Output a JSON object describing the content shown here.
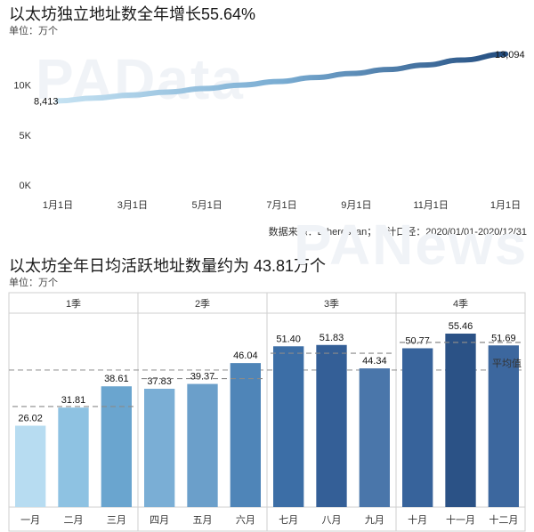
{
  "chart_data": [
    {
      "type": "line",
      "title": "以太坊独立地址数全年增长55.64%",
      "unit_label": "单位：万个",
      "source": "数据来源：Etherescan；统计口径：2020/01/01-2020/12/31",
      "watermark": "PAData",
      "x_tick_labels": [
        "1月1日",
        "3月1日",
        "5月1日",
        "7月1日",
        "9月1日",
        "11月1日",
        "1月1日"
      ],
      "y_tick_labels": [
        "0K",
        "5K",
        "10K"
      ],
      "ylim": [
        0,
        14500
      ],
      "x": [
        0,
        30,
        60,
        90,
        120,
        150,
        180,
        210,
        240,
        270,
        300,
        330,
        366
      ],
      "values": [
        8413,
        8700,
        9000,
        9300,
        9650,
        10000,
        10350,
        10750,
        11150,
        11550,
        12000,
        12500,
        13094
      ],
      "annotations": {
        "start": "8,413",
        "end": "13,094"
      }
    },
    {
      "type": "bar",
      "title": "以太坊全年日均活跃地址数量约为 43.81万个",
      "unit_label": "单位：万个",
      "watermark": "PANews",
      "quarters": [
        "1季",
        "2季",
        "3季",
        "4季"
      ],
      "categories": [
        "一月",
        "二月",
        "三月",
        "四月",
        "五月",
        "六月",
        "七月",
        "八月",
        "九月",
        "十月",
        "十一月",
        "十二月"
      ],
      "values": [
        26.02,
        31.81,
        38.61,
        37.83,
        39.37,
        46.04,
        51.4,
        51.83,
        44.34,
        50.77,
        55.46,
        51.69
      ],
      "value_labels": [
        "26.02",
        "31.81",
        "38.61",
        "37.83",
        "39.37",
        "46.04",
        "51.40",
        "51.83",
        "44.34",
        "50.77",
        "55.46",
        "51.69"
      ],
      "quarter_averages": [
        32.15,
        41.08,
        49.19,
        52.64
      ],
      "overall_average": 43.81,
      "average_label": "平均值",
      "ylim": [
        0,
        62
      ],
      "colors": [
        "#b7dcf1",
        "#8ec2e2",
        "#6aa5cf",
        "#7aaed5",
        "#6b9fca",
        "#4f85b8",
        "#3c6ea6",
        "#345f97",
        "#4a76aa",
        "#37639b",
        "#2b5286",
        "#3c679e"
      ]
    }
  ]
}
